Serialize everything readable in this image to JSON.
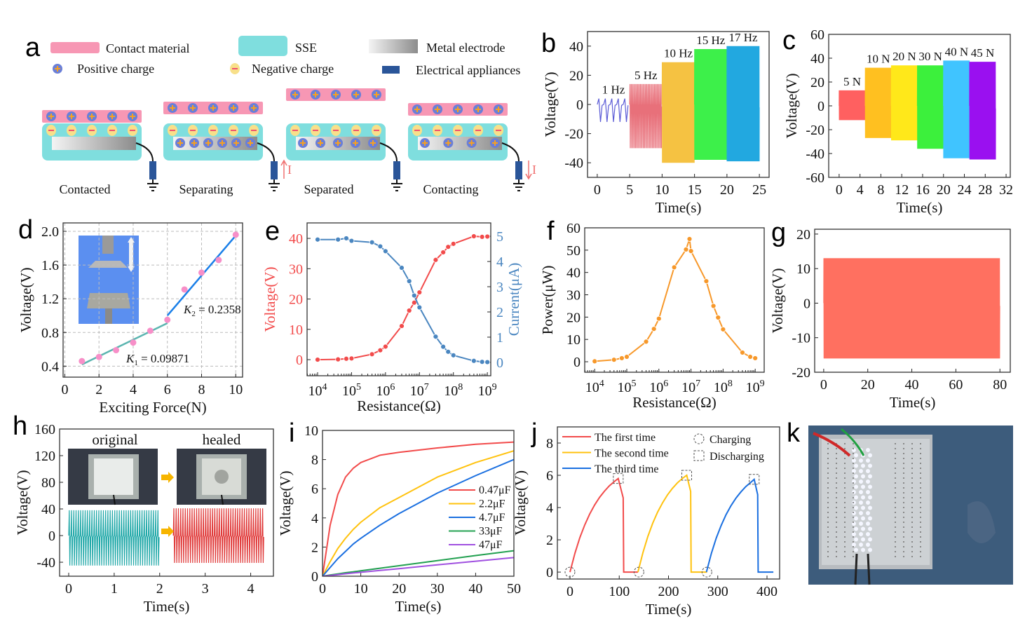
{
  "panel_letters": {
    "a": "a",
    "b": "b",
    "c": "c",
    "d": "d",
    "e": "e",
    "f": "f",
    "g": "g",
    "h": "h",
    "i": "i",
    "j": "j",
    "k": "k"
  },
  "schematic": {
    "legend": {
      "contact_material": "Contact material",
      "sse": "SSE",
      "metal_electrode": "Metal electrode",
      "positive_charge": "Positive charge",
      "negative_charge": "Negative charge",
      "electrical_appliances": "Electrical appliances"
    },
    "stages": [
      "Contacted",
      "Separating",
      "Separated",
      "Contacting"
    ],
    "current_label": "I",
    "colors": {
      "contact": "#f797b4",
      "sse": "#7fdede",
      "appliance": "#2a5599",
      "positive": "#6a7fd8",
      "negative": "#f8e08a",
      "current_arrow": "#f07070"
    }
  },
  "chart_data": [
    {
      "panel": "b",
      "type": "line",
      "xlabel": "Time(s)",
      "ylabel": "Voltage(V)",
      "xlim": [
        -1.5,
        26.5
      ],
      "ylim": [
        -50,
        50
      ],
      "xticks": [
        0,
        5,
        10,
        15,
        20,
        25
      ],
      "yticks": [
        -40,
        -20,
        0,
        20,
        40
      ],
      "segments": [
        {
          "label": "1 Hz",
          "t": [
            0,
            5
          ],
          "freq": 1,
          "vmax": 4,
          "vmin": -12,
          "color": "#5b5bd6"
        },
        {
          "label": "5 Hz",
          "t": [
            5,
            10
          ],
          "freq": 5,
          "vmax": 14,
          "vmin": -30,
          "color": "#e8707a"
        },
        {
          "label": "10 Hz",
          "t": [
            10,
            15
          ],
          "freq": 10,
          "vmax": 29,
          "vmin": -40,
          "color": "#f5c242"
        },
        {
          "label": "15 Hz",
          "t": [
            15,
            20
          ],
          "freq": 15,
          "vmax": 38,
          "vmin": -38,
          "color": "#3df04a"
        },
        {
          "label": "17 Hz",
          "t": [
            20,
            25
          ],
          "freq": 17,
          "vmax": 40,
          "vmin": -39,
          "color": "#22a8e0"
        }
      ]
    },
    {
      "panel": "c",
      "type": "line",
      "xlabel": "Time(s)",
      "ylabel": "Voltage(V)",
      "xlim": [
        -2,
        32.8
      ],
      "ylim": [
        -60,
        60
      ],
      "xticks": [
        0,
        4,
        8,
        12,
        16,
        20,
        24,
        28,
        32
      ],
      "yticks": [
        -60,
        -40,
        -20,
        0,
        20,
        40,
        60
      ],
      "segments": [
        {
          "label": "5 N",
          "t": [
            0,
            5
          ],
          "freq": 12,
          "vmax": 13,
          "vmin": -12,
          "color": "#ff6060"
        },
        {
          "label": "10 N",
          "t": [
            5,
            10
          ],
          "freq": 12,
          "vmax": 32,
          "vmin": -27,
          "color": "#ffc020"
        },
        {
          "label": "20 N",
          "t": [
            10,
            15
          ],
          "freq": 12,
          "vmax": 34,
          "vmin": -29,
          "color": "#ffe81a"
        },
        {
          "label": "30 N",
          "t": [
            15,
            20
          ],
          "freq": 12,
          "vmax": 34,
          "vmin": -36,
          "color": "#3cf03c"
        },
        {
          "label": "40 N",
          "t": [
            20,
            25
          ],
          "freq": 12,
          "vmax": 38,
          "vmin": -44,
          "color": "#40c4ff"
        },
        {
          "label": "45 N",
          "t": [
            25,
            30
          ],
          "freq": 12,
          "vmax": 37,
          "vmin": -45,
          "color": "#9a10f0"
        }
      ]
    },
    {
      "panel": "d",
      "type": "scatter",
      "xlabel": "Exciting Force(N)",
      "ylabel": "Voltage(V)",
      "xlim": [
        -0.1,
        10.4
      ],
      "ylim": [
        0.27,
        2.1
      ],
      "xticks": [
        0,
        2,
        4,
        6,
        8,
        10
      ],
      "yticks": [
        0.4,
        0.8,
        1.2,
        1.6,
        2.0
      ],
      "grid": true,
      "x": [
        1,
        2,
        3,
        4,
        5,
        6,
        7,
        8,
        9,
        10
      ],
      "y": [
        0.46,
        0.51,
        0.59,
        0.68,
        0.82,
        0.95,
        1.31,
        1.51,
        1.66,
        1.96
      ],
      "point_color": "#f78fc8",
      "fits": [
        {
          "label_var": "K",
          "label_sub": "1",
          "label_value": " = 0.09871",
          "x": [
            1,
            6
          ],
          "y": [
            0.42,
            0.91
          ],
          "color": "#5bb5b0"
        },
        {
          "label_var": "K",
          "label_sub": "2",
          "label_value": " = 0.2358",
          "x": [
            6,
            10
          ],
          "y": [
            1.0,
            1.95
          ],
          "color": "#1a7fe8"
        }
      ]
    },
    {
      "panel": "e",
      "type": "line",
      "xlabel": "Resistance(Ω)",
      "ylabel": "Voltage(V)",
      "ylabel_right": "Current(μA)",
      "xscale": "log",
      "xlim": [
        3.69,
        9.1
      ],
      "ylim": [
        -5.3,
        45.1
      ],
      "ylim_right": [
        -0.53,
        5.53
      ],
      "xticks": [
        4,
        5,
        6,
        7,
        8,
        9
      ],
      "yticks": [
        0,
        10,
        20,
        30,
        40
      ],
      "yticks_right": [
        0,
        1,
        2,
        3,
        4,
        5
      ],
      "x": [
        10000.0,
        40000.0,
        70000.0,
        100000.0,
        400000.0,
        700000.0,
        1000000.0,
        3000000.0,
        5000000.0,
        7000000.0,
        10000000.0,
        30000000.0,
        50000000.0,
        70000000.0,
        100000000.0,
        400000000.0,
        700000000.0,
        1000000000.0
      ],
      "series": [
        {
          "name": "Voltage(V)",
          "axis": "left",
          "color": "#f24b4b",
          "values": [
            0,
            0.1,
            0.3,
            0.4,
            1.8,
            3.1,
            4.3,
            11.1,
            16.2,
            18.8,
            22.2,
            32.9,
            35.4,
            37.2,
            38.2,
            40.7,
            40.5,
            40.6
          ]
        },
        {
          "name": "Current(μA)",
          "axis": "right",
          "color": "#4a86c0",
          "values": [
            4.87,
            4.87,
            4.92,
            4.82,
            4.76,
            4.6,
            4.41,
            3.75,
            3.22,
            2.65,
            2.18,
            1.02,
            0.62,
            0.42,
            0.28,
            0.06,
            0.02,
            0.01
          ]
        }
      ]
    },
    {
      "panel": "f",
      "type": "line",
      "xlabel": "Resistance(Ω)",
      "ylabel": "Power(μW)",
      "xscale": "log",
      "xlim": [
        3.69,
        9.28
      ],
      "ylim": [
        -4.7,
        60
      ],
      "xticks": [
        4,
        5,
        6,
        7,
        8,
        9
      ],
      "yticks": [
        0,
        10,
        20,
        30,
        40,
        50,
        60
      ],
      "x": [
        10000.0,
        40000.0,
        70000.0,
        100000.0,
        400000.0,
        700000.0,
        1000000.0,
        3000000.0,
        7000000.0,
        9000000.0,
        10000000.0,
        30000000.0,
        50000000.0,
        70000000.0,
        100000000.0,
        400000000.0,
        700000000.0,
        1000000000.0
      ],
      "series": [
        {
          "color": "#f7982a",
          "values": [
            0.2,
            0.9,
            1.6,
            2.2,
            9.0,
            14.7,
            19.3,
            42.3,
            50.3,
            55.0,
            49.6,
            36.1,
            25.0,
            19.8,
            14.5,
            4.1,
            2.2,
            1.6
          ]
        }
      ]
    },
    {
      "panel": "g",
      "type": "line",
      "xlabel": "Time(s)",
      "ylabel": "Voltage(V)",
      "xlim": [
        -4.1,
        84.7
      ],
      "ylim": [
        -20,
        21.4
      ],
      "xticks": [
        0,
        20,
        40,
        60,
        80
      ],
      "yticks": [
        -20,
        -10,
        0,
        10,
        20
      ],
      "segments": [
        {
          "t": [
            0,
            80
          ],
          "freq": 3,
          "vmax": 13,
          "vmin": -16,
          "color": "#ff7060"
        }
      ]
    },
    {
      "panel": "h",
      "type": "line",
      "xlabel": "Time(s)",
      "ylabel": "Voltage(V)",
      "xlim": [
        -0.2,
        4.5
      ],
      "ylim": [
        -61,
        160
      ],
      "xticks": [
        0,
        1,
        2,
        3,
        4
      ],
      "yticks": [
        -40,
        0,
        40,
        80,
        120,
        160
      ],
      "labels": [
        "original",
        "healed"
      ],
      "segments": [
        {
          "t": [
            0,
            2
          ],
          "freq": 20,
          "vmax": 38,
          "vmin": -45,
          "color": "#20a8a8"
        },
        {
          "t": [
            2.3,
            4.3
          ],
          "freq": 20,
          "vmax": 41,
          "vmin": -41,
          "color": "#e03a3a"
        }
      ],
      "arrow_color": "#f7b500"
    },
    {
      "panel": "i",
      "type": "line",
      "xlabel": "Time(s)",
      "ylabel": "Voltage(V)",
      "xlim": [
        0,
        50
      ],
      "ylim": [
        0,
        10
      ],
      "xticks": [
        0,
        10,
        20,
        30,
        40,
        50
      ],
      "yticks": [
        0,
        2,
        4,
        6,
        8,
        10
      ],
      "x": [
        0,
        2,
        4,
        6,
        8,
        10,
        15,
        20,
        30,
        40,
        50
      ],
      "legend": "right",
      "series": [
        {
          "name": "0.47μF",
          "color": "#f24b4b",
          "values": [
            0,
            3.5,
            5.6,
            6.8,
            7.4,
            7.8,
            8.3,
            8.5,
            8.8,
            9.05,
            9.2
          ]
        },
        {
          "name": "2.2μF",
          "color": "#ffc20e",
          "values": [
            0,
            1.0,
            1.9,
            2.6,
            3.2,
            3.7,
            4.7,
            5.4,
            6.8,
            7.8,
            8.6
          ]
        },
        {
          "name": "4.7μF",
          "color": "#1a6fe0",
          "values": [
            0,
            0.6,
            1.2,
            1.7,
            2.2,
            2.6,
            3.5,
            4.3,
            5.7,
            6.9,
            8.0
          ]
        },
        {
          "name": "33μF",
          "color": "#22a050",
          "values": [
            0,
            0.08,
            0.16,
            0.24,
            0.3,
            0.37,
            0.55,
            0.72,
            1.07,
            1.42,
            1.75
          ]
        },
        {
          "name": "47μF",
          "color": "#a050e0",
          "values": [
            0,
            0.05,
            0.11,
            0.17,
            0.22,
            0.27,
            0.4,
            0.52,
            0.78,
            1.03,
            1.28
          ]
        }
      ]
    },
    {
      "panel": "j",
      "type": "line",
      "xlabel": "Time(s)",
      "ylabel": "Voltage(V)",
      "xlim": [
        -25.6,
        425.6
      ],
      "ylim": [
        -0.43,
        9
      ],
      "xticks": [
        0,
        100,
        200,
        300,
        400
      ],
      "yticks": [
        0,
        2,
        4,
        6,
        8
      ],
      "legend": "top",
      "series": [
        {
          "name": "The first time",
          "color": "#f24b4b",
          "points": [
            [
              0,
              0
            ],
            [
              10,
              1.16
            ],
            [
              20,
              2.13
            ],
            [
              30,
              2.93
            ],
            [
              40,
              3.6
            ],
            [
              50,
              4.16
            ],
            [
              60,
              4.63
            ],
            [
              70,
              5.02
            ],
            [
              80,
              5.35
            ],
            [
              90,
              5.61
            ],
            [
              98,
              5.8
            ],
            [
              108,
              4.6
            ],
            [
              109,
              0
            ],
            [
              138,
              0
            ]
          ]
        },
        {
          "name": "The second time",
          "color": "#ffc20e",
          "points": [
            [
              138,
              0
            ],
            [
              148,
              1.2
            ],
            [
              158,
              2.2
            ],
            [
              168,
              3.03
            ],
            [
              178,
              3.72
            ],
            [
              188,
              4.3
            ],
            [
              198,
              4.79
            ],
            [
              208,
              5.19
            ],
            [
              218,
              5.53
            ],
            [
              228,
              5.8
            ],
            [
              237,
              6.0
            ],
            [
              245,
              5.0
            ],
            [
              246,
              0
            ],
            [
              278,
              0
            ]
          ]
        },
        {
          "name": "The third time",
          "color": "#1a6fe0",
          "points": [
            [
              277,
              0
            ],
            [
              287,
              1.15
            ],
            [
              297,
              2.11
            ],
            [
              307,
              2.9
            ],
            [
              317,
              3.57
            ],
            [
              327,
              4.12
            ],
            [
              337,
              4.59
            ],
            [
              347,
              4.97
            ],
            [
              357,
              5.3
            ],
            [
              367,
              5.56
            ],
            [
              374,
              5.75
            ],
            [
              381,
              4.8
            ],
            [
              382,
              0
            ],
            [
              413,
              0
            ]
          ]
        }
      ],
      "markers": {
        "charging_label": "Charging",
        "discharging_label": "Discharging",
        "charging": [
          [
            0,
            0
          ],
          [
            140,
            0
          ],
          [
            278,
            0
          ]
        ],
        "discharging": [
          [
            98,
            5.8
          ],
          [
            237,
            6.0
          ],
          [
            374,
            5.75
          ]
        ]
      }
    }
  ]
}
